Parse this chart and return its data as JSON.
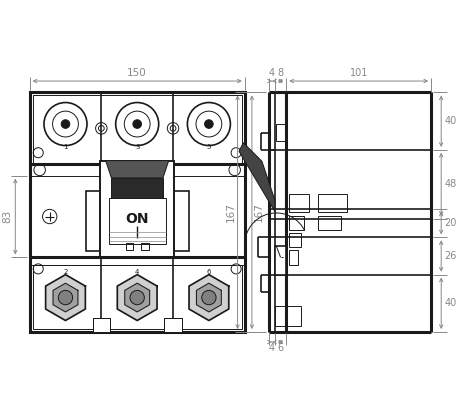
{
  "bg_color": "#ffffff",
  "line_color": "#1a1a1a",
  "dim_color": "#888888",
  "lw_outer": 2.2,
  "lw_main": 1.2,
  "lw_thin": 0.7,
  "fig_width": 4.58,
  "fig_height": 4.13,
  "dpi": 100,
  "dim_150": "150",
  "dim_83": "83",
  "dim_167": "167",
  "dim_4t": "4",
  "dim_8": "8",
  "dim_101": "101",
  "dim_40t": "40",
  "dim_48": "48",
  "dim_20": "20",
  "dim_26": "26",
  "dim_40b": "40",
  "dim_4b": "4",
  "dim_6b": "6"
}
